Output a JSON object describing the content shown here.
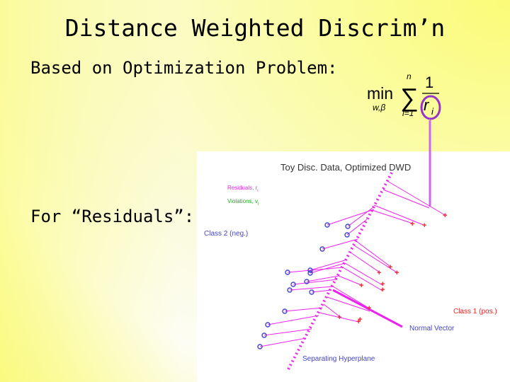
{
  "slide": {
    "title": "Distance Weighted Discrim’n",
    "line1": "Based on Optimization Problem:",
    "line2": "For “Residuals”:"
  },
  "formula": {
    "op": "min",
    "sub_vars": "w,β",
    "sum_top": "n",
    "sum_bottom": "i=1",
    "numerator": "1",
    "den_r": "r",
    "den_i": "i"
  },
  "plot": {
    "title": "Toy Disc. Data, Optimized DWD",
    "legend_residuals": "Residuals, r",
    "legend_residuals_sub": "i",
    "legend_violations": "Violations, v",
    "legend_violations_sub": "i",
    "class2_label": "Class 2 (neg.)",
    "class1_label": "Class 1 (pos.)",
    "normal_label": "Normal Vector",
    "hyperplane_label": "Separating Hyperplane"
  },
  "colors": {
    "magenta": "#ee22ee",
    "red": "#ee2222",
    "blue": "#4444cc",
    "circle_highlight": "#9933cc",
    "highlight_line": "#cc66ee",
    "green": "#22aa22"
  }
}
